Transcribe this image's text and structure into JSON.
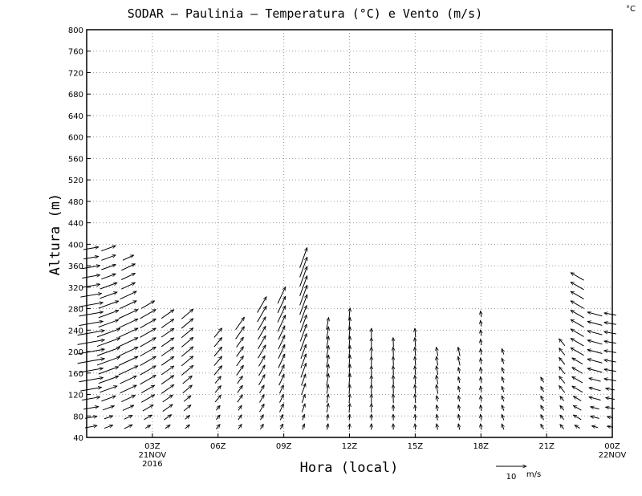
{
  "chart_data": {
    "type": "vector",
    "title": "SODAR – Paulinia – Temperatura (°C) e Vento (m/s)",
    "corner_unit": "°C",
    "xlabel": "Hora (local)",
    "ylabel": "Altura (m)",
    "ylim": [
      40,
      800
    ],
    "xlim": [
      0,
      24
    ],
    "y_ticks": [
      "40",
      "80",
      "120",
      "160",
      "200",
      "240",
      "280",
      "320",
      "360",
      "400",
      "440",
      "480",
      "520",
      "560",
      "600",
      "640",
      "680",
      "720",
      "760",
      "800"
    ],
    "x_ticks": [
      {
        "x": 3,
        "label": "03Z",
        "sub1": "21NOV",
        "sub2": "2016"
      },
      {
        "x": 6,
        "label": "06Z",
        "sub1": "",
        "sub2": ""
      },
      {
        "x": 9,
        "label": "09Z",
        "sub1": "",
        "sub2": ""
      },
      {
        "x": 12,
        "label": "12Z",
        "sub1": "",
        "sub2": ""
      },
      {
        "x": 15,
        "label": "15Z",
        "sub1": "",
        "sub2": ""
      },
      {
        "x": 18,
        "label": "18Z",
        "sub1": "",
        "sub2": ""
      },
      {
        "x": 21,
        "label": "21Z",
        "sub1": "",
        "sub2": ""
      },
      {
        "x": 24,
        "label": "00Z",
        "sub1": "22NOV",
        "sub2": ""
      }
    ],
    "grid": true,
    "reference_vector": {
      "label": "10",
      "unit": "m/s",
      "speed": 10
    },
    "wind_columns": [
      {
        "t": 0.2,
        "top": 400,
        "deg": 260,
        "spd": [
          4,
          4,
          5,
          6,
          7,
          8,
          8,
          9,
          9,
          9,
          9,
          8,
          8,
          8,
          7,
          6,
          6,
          6,
          5,
          5,
          5
        ]
      },
      {
        "t": 1.0,
        "top": 400,
        "deg": 250,
        "spd": [
          3,
          3,
          4,
          5,
          6,
          7,
          7,
          8,
          8,
          8,
          8,
          7,
          7,
          7,
          6,
          6,
          5,
          5,
          5,
          5,
          4
        ]
      },
      {
        "t": 1.9,
        "top": 380,
        "deg": 245,
        "spd": [
          3,
          3,
          4,
          5,
          6,
          6,
          7,
          7,
          7,
          7,
          7,
          7,
          7,
          6,
          6,
          5,
          5,
          5,
          4,
          4
        ]
      },
      {
        "t": 2.8,
        "top": 300,
        "deg": 240,
        "spd": [
          2,
          3,
          4,
          5,
          5,
          6,
          6,
          6,
          6,
          6,
          6,
          6,
          6,
          5,
          6
        ]
      },
      {
        "t": 3.7,
        "top": 280,
        "deg": 235,
        "spd": [
          2,
          3,
          4,
          4,
          5,
          5,
          5,
          5,
          5,
          5,
          5,
          5,
          5,
          5
        ]
      },
      {
        "t": 4.6,
        "top": 280,
        "deg": 230,
        "spd": [
          2,
          2,
          3,
          3,
          4,
          4,
          5,
          5,
          5,
          5,
          5,
          5,
          5,
          5
        ]
      },
      {
        "t": 6.0,
        "top": 240,
        "deg": 220,
        "spd": [
          2,
          2,
          2,
          3,
          3,
          3,
          4,
          4,
          4,
          4,
          4,
          4
        ]
      },
      {
        "t": 7.0,
        "top": 260,
        "deg": 215,
        "spd": [
          2,
          2,
          2,
          3,
          3,
          3,
          4,
          4,
          4,
          4,
          5,
          5,
          5
        ]
      },
      {
        "t": 8.0,
        "top": 300,
        "deg": 210,
        "spd": [
          2,
          2,
          3,
          3,
          3,
          4,
          4,
          4,
          5,
          5,
          5,
          5,
          6,
          6,
          6
        ]
      },
      {
        "t": 8.9,
        "top": 320,
        "deg": 205,
        "spd": [
          2,
          2,
          3,
          3,
          3,
          4,
          4,
          5,
          5,
          5,
          5,
          6,
          6,
          6,
          6,
          6
        ]
      },
      {
        "t": 9.9,
        "top": 380,
        "deg": 200,
        "spd": [
          2,
          2,
          3,
          3,
          4,
          4,
          5,
          5,
          5,
          6,
          6,
          6,
          6,
          7,
          7,
          7,
          7,
          7,
          7,
          7
        ]
      },
      {
        "t": 11.0,
        "top": 260,
        "deg": 190,
        "spd": [
          2,
          2,
          3,
          3,
          3,
          4,
          4,
          4,
          4,
          4,
          4,
          4,
          4
        ]
      },
      {
        "t": 12.0,
        "top": 280,
        "deg": 185,
        "spd": [
          2,
          2,
          3,
          3,
          3,
          4,
          4,
          4,
          4,
          4,
          4,
          4,
          4,
          4
        ]
      },
      {
        "t": 13.0,
        "top": 240,
        "deg": 180,
        "spd": [
          2,
          2,
          3,
          3,
          3,
          3,
          3,
          3,
          3,
          3,
          3,
          3
        ]
      },
      {
        "t": 14.0,
        "top": 220,
        "deg": 178,
        "spd": [
          2,
          2,
          2,
          3,
          3,
          3,
          3,
          3,
          3,
          3,
          3
        ]
      },
      {
        "t": 15.0,
        "top": 240,
        "deg": 175,
        "spd": [
          2,
          2,
          2,
          3,
          3,
          3,
          3,
          3,
          3,
          3,
          3,
          3
        ]
      },
      {
        "t": 16.0,
        "top": 200,
        "deg": 170,
        "spd": [
          2,
          2,
          2,
          2,
          3,
          3,
          3,
          3,
          3,
          3
        ]
      },
      {
        "t": 17.0,
        "top": 200,
        "deg": 168,
        "spd": [
          2,
          2,
          2,
          2,
          2,
          2,
          2,
          3,
          3,
          3
        ]
      },
      {
        "t": 18.0,
        "top": 280,
        "deg": 170,
        "spd": [
          2,
          2,
          2,
          2,
          2,
          2,
          2,
          2,
          2,
          2,
          2,
          2,
          2,
          2
        ]
      },
      {
        "t": 19.0,
        "top": 200,
        "deg": 160,
        "spd": [
          2,
          2,
          2,
          2,
          2,
          2,
          2,
          2,
          2,
          2
        ]
      },
      {
        "t": 20.8,
        "top": 160,
        "deg": 150,
        "spd": [
          2,
          2,
          2,
          2,
          2,
          2,
          2,
          2
        ]
      },
      {
        "t": 21.7,
        "top": 220,
        "deg": 140,
        "spd": [
          2,
          2,
          2,
          2,
          3,
          3,
          3,
          3,
          3,
          3,
          3
        ]
      },
      {
        "t": 22.4,
        "top": 340,
        "deg": 120,
        "spd": [
          2,
          3,
          3,
          3,
          4,
          4,
          4,
          4,
          5,
          5,
          5,
          5,
          5,
          5,
          5,
          5,
          5
        ]
      },
      {
        "t": 23.2,
        "top": 280,
        "deg": 105,
        "spd": [
          2,
          3,
          3,
          4,
          4,
          4,
          5,
          5,
          5,
          5,
          5,
          5,
          5,
          5
        ]
      },
      {
        "t": 23.9,
        "top": 280,
        "deg": 100,
        "spd": [
          2,
          2,
          3,
          3,
          3,
          4,
          4,
          4,
          4,
          4,
          4,
          4,
          4,
          4
        ]
      }
    ]
  }
}
